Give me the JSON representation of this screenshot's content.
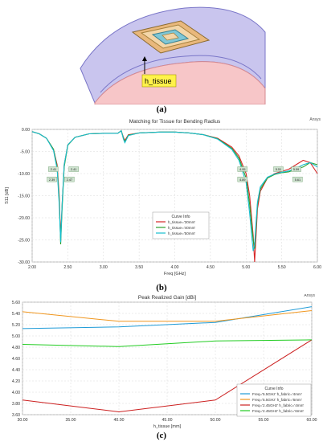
{
  "captions": {
    "a": "(a)",
    "b": "(b)",
    "c": "(c)"
  },
  "figure_a": {
    "label": "h_tissue"
  },
  "chart_data": [
    {
      "type": "line",
      "title": "Matching for Tissue for Bending Radius",
      "corner_label": "Ansys",
      "xlabel": "Freq [GHz]",
      "ylabel": "S11 [dB]",
      "xlim": [
        2.0,
        6.0
      ],
      "ylim": [
        -30.0,
        0.0
      ],
      "x_ticks": [
        "2.00",
        "2.50",
        "3.00",
        "3.50",
        "4.00",
        "4.50",
        "5.00",
        "5.50",
        "6.00"
      ],
      "y_ticks": [
        "0.00",
        "-5.00",
        "-10.00",
        "-15.00",
        "-20.00",
        "-25.00",
        "-30.00"
      ],
      "grid": true,
      "legend": {
        "title": "Curve Info",
        "placement": "center"
      },
      "markers": [
        "2.41",
        "2.39",
        "2.41",
        "2.47",
        "4.95",
        "4.89",
        "5.59",
        "5.61",
        "5.51"
      ],
      "series": [
        {
          "name": "h_tissue='30mm'",
          "color": "#d62728",
          "x": [
            2.0,
            2.1,
            2.2,
            2.3,
            2.35,
            2.38,
            2.4,
            2.42,
            2.45,
            2.5,
            2.6,
            2.8,
            3.0,
            3.2,
            3.25,
            3.28,
            3.3,
            3.35,
            3.5,
            3.8,
            4.0,
            4.2,
            4.4,
            4.6,
            4.8,
            4.9,
            5.0,
            5.05,
            5.1,
            5.12,
            5.14,
            5.16,
            5.2,
            5.3,
            5.4,
            5.5,
            5.6,
            5.7,
            5.8,
            5.9,
            6.0
          ],
          "y": [
            -0.5,
            -1.0,
            -2.0,
            -4.5,
            -8.0,
            -15.0,
            -24.5,
            -17.0,
            -8.0,
            -3.5,
            -1.8,
            -1.0,
            -0.9,
            -0.9,
            -0.3,
            -1.8,
            -2.5,
            -1.2,
            -0.8,
            -0.6,
            -0.6,
            -0.8,
            -1.2,
            -2.0,
            -4.0,
            -6.0,
            -10.0,
            -15.0,
            -24.0,
            -30.0,
            -24.0,
            -18.0,
            -14.0,
            -11.0,
            -10.0,
            -9.5,
            -9.0,
            -8.0,
            -7.0,
            -7.5,
            -10.0
          ]
        },
        {
          "name": "h_tissue='40mm'",
          "color": "#2ca02c",
          "x": [
            2.0,
            2.1,
            2.2,
            2.3,
            2.35,
            2.38,
            2.4,
            2.42,
            2.45,
            2.5,
            2.6,
            2.8,
            3.0,
            3.2,
            3.25,
            3.28,
            3.3,
            3.35,
            3.5,
            3.8,
            4.0,
            4.2,
            4.4,
            4.6,
            4.8,
            4.9,
            5.0,
            5.05,
            5.1,
            5.12,
            5.14,
            5.16,
            5.2,
            5.3,
            5.4,
            5.5,
            5.6,
            5.7,
            5.8,
            5.9,
            6.0
          ],
          "y": [
            -0.5,
            -1.0,
            -2.0,
            -4.5,
            -8.5,
            -16.0,
            -26.0,
            -18.0,
            -8.5,
            -3.6,
            -1.8,
            -1.0,
            -0.9,
            -0.9,
            -0.3,
            -2.0,
            -2.8,
            -1.3,
            -0.8,
            -0.6,
            -0.6,
            -0.8,
            -1.2,
            -2.1,
            -4.3,
            -6.5,
            -11.0,
            -17.0,
            -25.0,
            -27.0,
            -22.0,
            -17.0,
            -13.5,
            -11.0,
            -10.2,
            -9.8,
            -9.6,
            -9.0,
            -8.5,
            -7.5,
            -8.0
          ]
        },
        {
          "name": "h_tissue='50mm'",
          "color": "#17becf",
          "x": [
            2.0,
            2.1,
            2.2,
            2.3,
            2.35,
            2.38,
            2.4,
            2.42,
            2.45,
            2.5,
            2.6,
            2.8,
            3.0,
            3.2,
            3.25,
            3.28,
            3.3,
            3.35,
            3.5,
            3.8,
            4.0,
            4.2,
            4.4,
            4.6,
            4.8,
            4.9,
            5.0,
            5.05,
            5.1,
            5.12,
            5.14,
            5.16,
            5.2,
            5.3,
            5.4,
            5.5,
            5.6,
            5.7,
            5.8,
            5.9,
            6.0
          ],
          "y": [
            -0.5,
            -1.0,
            -2.0,
            -4.8,
            -9.0,
            -17.0,
            -25.5,
            -17.0,
            -8.0,
            -3.5,
            -1.8,
            -1.0,
            -0.9,
            -0.9,
            -0.3,
            -2.2,
            -3.0,
            -1.4,
            -0.8,
            -0.6,
            -0.6,
            -0.8,
            -1.2,
            -2.2,
            -4.5,
            -7.0,
            -12.0,
            -19.0,
            -27.5,
            -26.0,
            -21.0,
            -16.5,
            -13.0,
            -10.8,
            -10.1,
            -9.7,
            -9.4,
            -8.8,
            -8.0,
            -7.5,
            -8.5
          ]
        }
      ]
    },
    {
      "type": "line",
      "title": "Peak Realized Gain [dBi]",
      "corner_label": "Ansys",
      "xlabel": "h_tissue [mm]",
      "ylabel": "",
      "xlim": [
        30.0,
        60.0
      ],
      "ylim": [
        3.6,
        5.6
      ],
      "x_ticks": [
        "30.00",
        "35.00",
        "40.00",
        "45.00",
        "50.00",
        "55.00",
        "60.00"
      ],
      "y_ticks": [
        "5.60",
        "5.40",
        "5.20",
        "5.00",
        "4.80",
        "4.60",
        "4.40",
        "4.20",
        "4.00",
        "3.80",
        "3.60"
      ],
      "grid": true,
      "legend": {
        "title": "Curve Info",
        "placement": "bottom-right"
      },
      "series": [
        {
          "name": "Freq='5.5GHz' h_fabric='4mm'",
          "color": "#1f9bd7",
          "x": [
            30,
            40,
            50,
            60
          ],
          "y": [
            5.13,
            5.16,
            5.24,
            5.52
          ]
        },
        {
          "name": "Freq='5.5GHz' h_fabric='6mm'",
          "color": "#f0961e",
          "x": [
            30,
            40,
            50,
            60
          ],
          "y": [
            5.43,
            5.26,
            5.26,
            5.45
          ]
        },
        {
          "name": "Freq='2.45GHz' h_fabric='4mm'",
          "color": "#cc2020",
          "x": [
            30,
            40,
            50,
            60
          ],
          "y": [
            3.86,
            3.65,
            3.86,
            4.93
          ]
        },
        {
          "name": "Freq='2.45GHz' h_fabric='6mm'",
          "color": "#22cc22",
          "x": [
            30,
            40,
            50,
            60
          ],
          "y": [
            4.85,
            4.81,
            4.91,
            4.93
          ]
        }
      ]
    }
  ]
}
